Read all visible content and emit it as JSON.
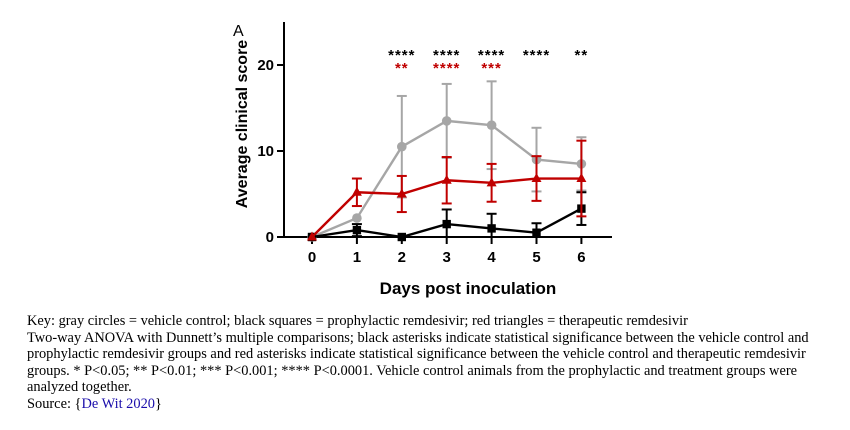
{
  "chart_data": {
    "type": "line",
    "panel_label": "A",
    "xlabel": "Days post inoculation",
    "ylabel": "Average clinical score",
    "x": [
      0,
      1,
      2,
      3,
      4,
      5,
      6
    ],
    "x_ticks": [
      "0",
      "1",
      "2",
      "3",
      "4",
      "5",
      "6"
    ],
    "ylim": [
      0,
      25
    ],
    "y_ticks": [
      0,
      10,
      20
    ],
    "y_tick_labels": [
      "0",
      "10",
      "20"
    ],
    "grid": false,
    "series": [
      {
        "color": "#a6a6a6",
        "marker": "circle",
        "values": [
          0,
          2.2,
          10.5,
          13.5,
          13.0,
          9.0,
          8.5
        ],
        "error_upper": [
          0,
          0,
          5.9,
          4.3,
          5.1,
          3.7,
          3.1
        ],
        "error_lower": [
          0,
          0,
          5.9,
          4.3,
          5.1,
          3.7,
          3.1
        ]
      },
      {
        "color": "#000000",
        "marker": "square",
        "values": [
          0,
          0.8,
          0,
          1.5,
          1.0,
          0.5,
          3.3
        ],
        "error_upper": [
          0,
          0.7,
          0,
          1.7,
          1.7,
          1.1,
          1.9
        ],
        "error_lower": [
          0,
          0.7,
          0,
          1.5,
          1.0,
          0.5,
          1.9
        ]
      },
      {
        "color": "#c00000",
        "marker": "triangle",
        "values": [
          0,
          5.2,
          5.0,
          6.6,
          6.3,
          6.8,
          6.8
        ],
        "error_upper": [
          0,
          1.6,
          2.1,
          2.7,
          2.2,
          2.6,
          4.4
        ],
        "error_lower": [
          0,
          1.6,
          2.1,
          2.7,
          2.2,
          2.6,
          4.4
        ]
      }
    ],
    "significance": [
      {
        "x": 2,
        "black": "****",
        "red": "**"
      },
      {
        "x": 3,
        "black": "****",
        "red": "****"
      },
      {
        "x": 4,
        "black": "****",
        "red": "***"
      },
      {
        "x": 5,
        "black": "****",
        "red": ""
      },
      {
        "x": 6,
        "black": "**",
        "red": ""
      }
    ],
    "colors": {
      "black_stars": "#000000",
      "red_stars": "#c00000",
      "axis": "#000000"
    }
  },
  "caption": {
    "key": "Key: gray circles = vehicle control; black squares = prophylactic remdesivir; red triangles = therapeutic remdesivir",
    "stats": "Two-way ANOVA with Dunnett’s multiple comparisons; black asterisks indicate statistical significance between the vehicle control and prophylactic remdesivir groups and red asterisks indicate statistical significance between the vehicle control and therapeutic remdesivir groups. * P<0.05; ** P<0.01; *** P<0.001; **** P<0.0001. Vehicle control animals from the prophylactic and treatment groups were analyzed together.",
    "source_label": "Source: {",
    "source_link": "De Wit 2020",
    "source_end": "}"
  }
}
